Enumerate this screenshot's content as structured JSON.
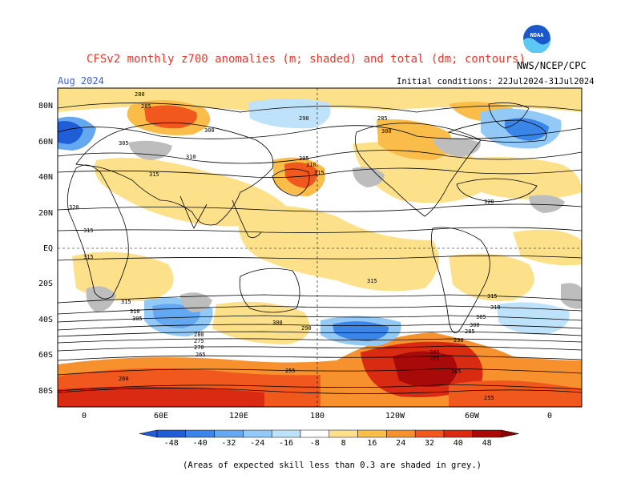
{
  "header": {
    "title": "CFSv2 monthly z700 anomalies (m; shaded) and total (dm; contours)",
    "org": "NWS/NCEP/CPC",
    "month": "Aug 2024",
    "init": "Initial conditions: 22Jul2024-31Jul2024",
    "logo_text": "NOAA"
  },
  "axes": {
    "lat_labels": [
      "80N",
      "60N",
      "40N",
      "20N",
      "EQ",
      "20S",
      "40S",
      "60S",
      "80S"
    ],
    "lon_labels": [
      "0",
      "60E",
      "120E",
      "180",
      "120W",
      "60W",
      "0"
    ]
  },
  "colorbar": {
    "ticks": [
      "-48",
      "-40",
      "-32",
      "-24",
      "-16",
      "-8",
      "8",
      "16",
      "24",
      "32",
      "40",
      "48"
    ],
    "colors": [
      "#1f5ed6",
      "#3a86e8",
      "#64a8f2",
      "#93c9f7",
      "#bfe2fb",
      "#ffffff",
      "#fde08a",
      "#fbbd4a",
      "#f7912e",
      "#f0581e",
      "#d92a12",
      "#a80a0a"
    ]
  },
  "contour_labels": [
    "280",
    "285",
    "300",
    "305",
    "310",
    "315",
    "320",
    "290",
    "285",
    "300",
    "305",
    "310",
    "315",
    "320",
    "315",
    "315",
    "315",
    "315",
    "310",
    "305",
    "300",
    "290",
    "280",
    "275",
    "270",
    "265",
    "260",
    "255",
    "315",
    "310",
    "305",
    "300",
    "290",
    "285",
    "280",
    "275",
    "265",
    "255"
  ],
  "footnote": "(Areas of expected skill less than 0.3 are shaded in grey.)"
}
